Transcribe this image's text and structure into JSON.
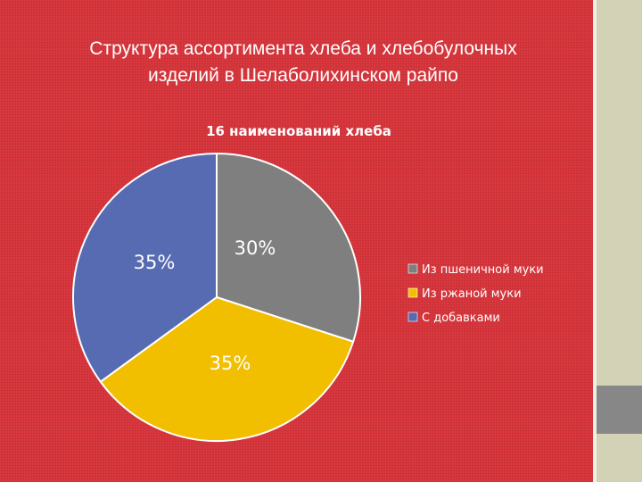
{
  "slide": {
    "title_line1": "Структура ассортимента хлеба и хлебобулочных",
    "title_line2": "изделий в Шелаболихинском райпо"
  },
  "colors": {
    "background": "#d6343a",
    "wheat": "#7f7f7f",
    "rye": "#f2bf00",
    "additives": "#566bb1"
  },
  "chart_data": {
    "type": "pie",
    "title": "16 наименований хлеба",
    "categories": [
      "Из пшеничной муки",
      "Из ржаной муки",
      "С добавками"
    ],
    "values": [
      30,
      35,
      35
    ],
    "labels": [
      "30%",
      "35%",
      "35%"
    ],
    "colors": [
      "#7f7f7f",
      "#f2bf00",
      "#566bb1"
    ],
    "start_angle_deg": 0,
    "direction": "clockwise",
    "legend_position": "right"
  }
}
